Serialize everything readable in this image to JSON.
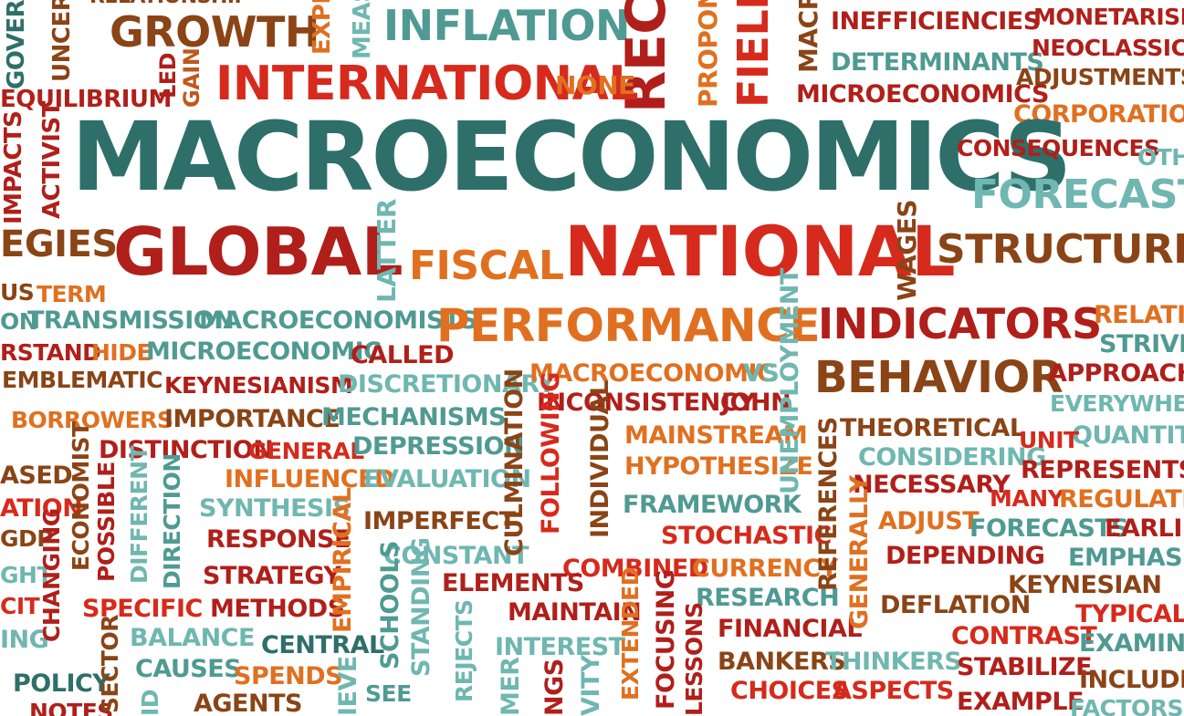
{
  "palette": {
    "teal": "#2e6f6a",
    "light_teal": "#4f9a93",
    "cyan": "#6fb7b0",
    "red": "#d62a1c",
    "dark_red": "#b01f1a",
    "orange": "#e07020",
    "brown": "#8a4416",
    "rust": "#c0581c",
    "background": "#ffffff"
  },
  "words": {
    "macroeconomics": "MACROECONOMICS",
    "global": "GLOBAL",
    "national": "NATIONAL",
    "international": "INTERNATIONAL",
    "growth": "GROWTH",
    "inflation": "INFLATION",
    "rec": "REC",
    "field": "FIELD",
    "proponent": "PROPONENT",
    "macro": "MACRO",
    "inefficiencies": "INEFFICIENCIES",
    "determinants": "DETERMINANTS",
    "microeconomics": "MICROECONOMICS",
    "monetarism": "MONETARISM",
    "neoclassical": "NEOCLASSICAL",
    "adjustments": "ADJUSTMENTS",
    "corporations": "CORPORATIONS",
    "consequences": "CONSEQUENCES",
    "oth": "OTH",
    "forecast": "FORECAST",
    "structure": "STRUCTURE",
    "relation": "RELATION",
    "strives": "STRIVES",
    "approache": "APPROACHE",
    "everywher": "EVERYWHER",
    "quantitie": "QUANTITIE",
    "unit": "UNIT",
    "represents": "REPRESENTS",
    "many": "MANY",
    "regulation": "REGULATION",
    "forecasts": "FORECASTS",
    "earlie": "EARLIE",
    "emphasiz": "EMPHASIZ",
    "keynesian": "KEYNESIAN",
    "typically": "TYPICALLY",
    "examines": "EXAMINES",
    "includes": "INCLUDES",
    "factors": "FACTORS",
    "equilibrium": "EQUILIBRIUM",
    "none": "NONE",
    "led": "LED",
    "gain": "GAIN",
    "expe": "EXPE",
    "meas": "MEAS",
    "relationship": "RELATIONSHIP",
    "govern": "GOVERN",
    "uncert": "UNCERT",
    "impacts": "IMPACTS",
    "activist": "ACTIVIST",
    "egies": "EGIES",
    "us": "US",
    "term": "TERM",
    "on": "ON",
    "transmission": "TRANSMISSION",
    "macroeconomists": "MACROECONOMISTS",
    "latter": "LATTER",
    "fiscal": "FISCAL",
    "wages": "WAGES",
    "performance": "PERFORMANCE",
    "indicators": "INDICATORS",
    "rstand": "RSTAND",
    "hide": "HIDE",
    "microeconomic": "MICROECONOMIC",
    "called": "CALLED",
    "emblematic": "EMBLEMATIC",
    "keynesianism": "KEYNESIANISM",
    "discretionary": "DISCRETIONARY",
    "macroeconomic": "MACROECONOMIC",
    "vs": "VS",
    "behavior": "BEHAVIOR",
    "borrowers": "BORROWERS",
    "importance": "IMPORTANCE",
    "mechanisms": "MECHANISMS",
    "inconsistency": "INCONSISTENCY",
    "john": "JOHN",
    "theoretical": "THEORETICAL",
    "distinction": "DISTINCTION",
    "general": "GENERAL",
    "depression": "DEPRESSION",
    "mainstream": "MAINSTREAM",
    "considering": "CONSIDERING",
    "ased": "ASED",
    "influenced": "INFLUENCED",
    "evaluation": "EVALUATION",
    "hypothesize": "HYPOTHESIZE",
    "necessary": "NECESSARY",
    "ation": "ATION",
    "synthesis": "SYNTHESIS",
    "framework": "FRAMEWORK",
    "adjust": "ADJUST",
    "gdp": "GDP",
    "response": "RESPONSE",
    "imperfect": "IMPERFECT",
    "stochastic": "STOCHASTIC",
    "ght": "GHT",
    "strategy": "STRATEGY",
    "constant": "CONSTANT",
    "combined": "COMBINED",
    "currency": "CURRENCY",
    "depending": "DEPENDING",
    "cit": "CIT",
    "specific": "SPECIFIC",
    "methods": "METHODS",
    "elements": "ELEMENTS",
    "research": "RESEARCH",
    "deflation": "DEFLATION",
    "ing": "ING",
    "balance": "BALANCE",
    "maintain": "MAINTAIN",
    "financial": "FINANCIAL",
    "contrast": "CONTRAST",
    "causes": "CAUSES",
    "central": "CENTRAL",
    "interest": "INTEREST",
    "bankers": "BANKERS",
    "thinkers": "THINKERS",
    "stabilize": "STABILIZE",
    "policy": "POLICY",
    "spends": "SPENDS",
    "choices": "CHOICES",
    "aspects": "ASPECTS",
    "notes": "NOTES",
    "agents": "AGENTS",
    "example": "EXAMPLE",
    "changing": "CHANGING",
    "economist": "ECONOMIST",
    "possible": "POSSIBLE",
    "different": "DIFFERENT",
    "direction": "DIRECTION",
    "empirical": "EMPIRICAL",
    "schools": "SCHOOLS",
    "standing": "STANDING",
    "culmination": "CULMINATION",
    "following": "FOLLOWING",
    "individual": "INDIVIDUAL",
    "unemployment": "UNEMPLOYMENT",
    "references": "REFERENCES",
    "generally": "GENERALLY",
    "extended": "EXTENDED",
    "focusing": "FOCUSING",
    "lessons": "LESSONS",
    "rejects": "REJECTS",
    "sector": "SECTOR",
    "see": "SEE",
    "ieve": "IEVE",
    "mer": "MER",
    "ngs": "NGS",
    "vity": "VITY",
    "id": "ID"
  }
}
